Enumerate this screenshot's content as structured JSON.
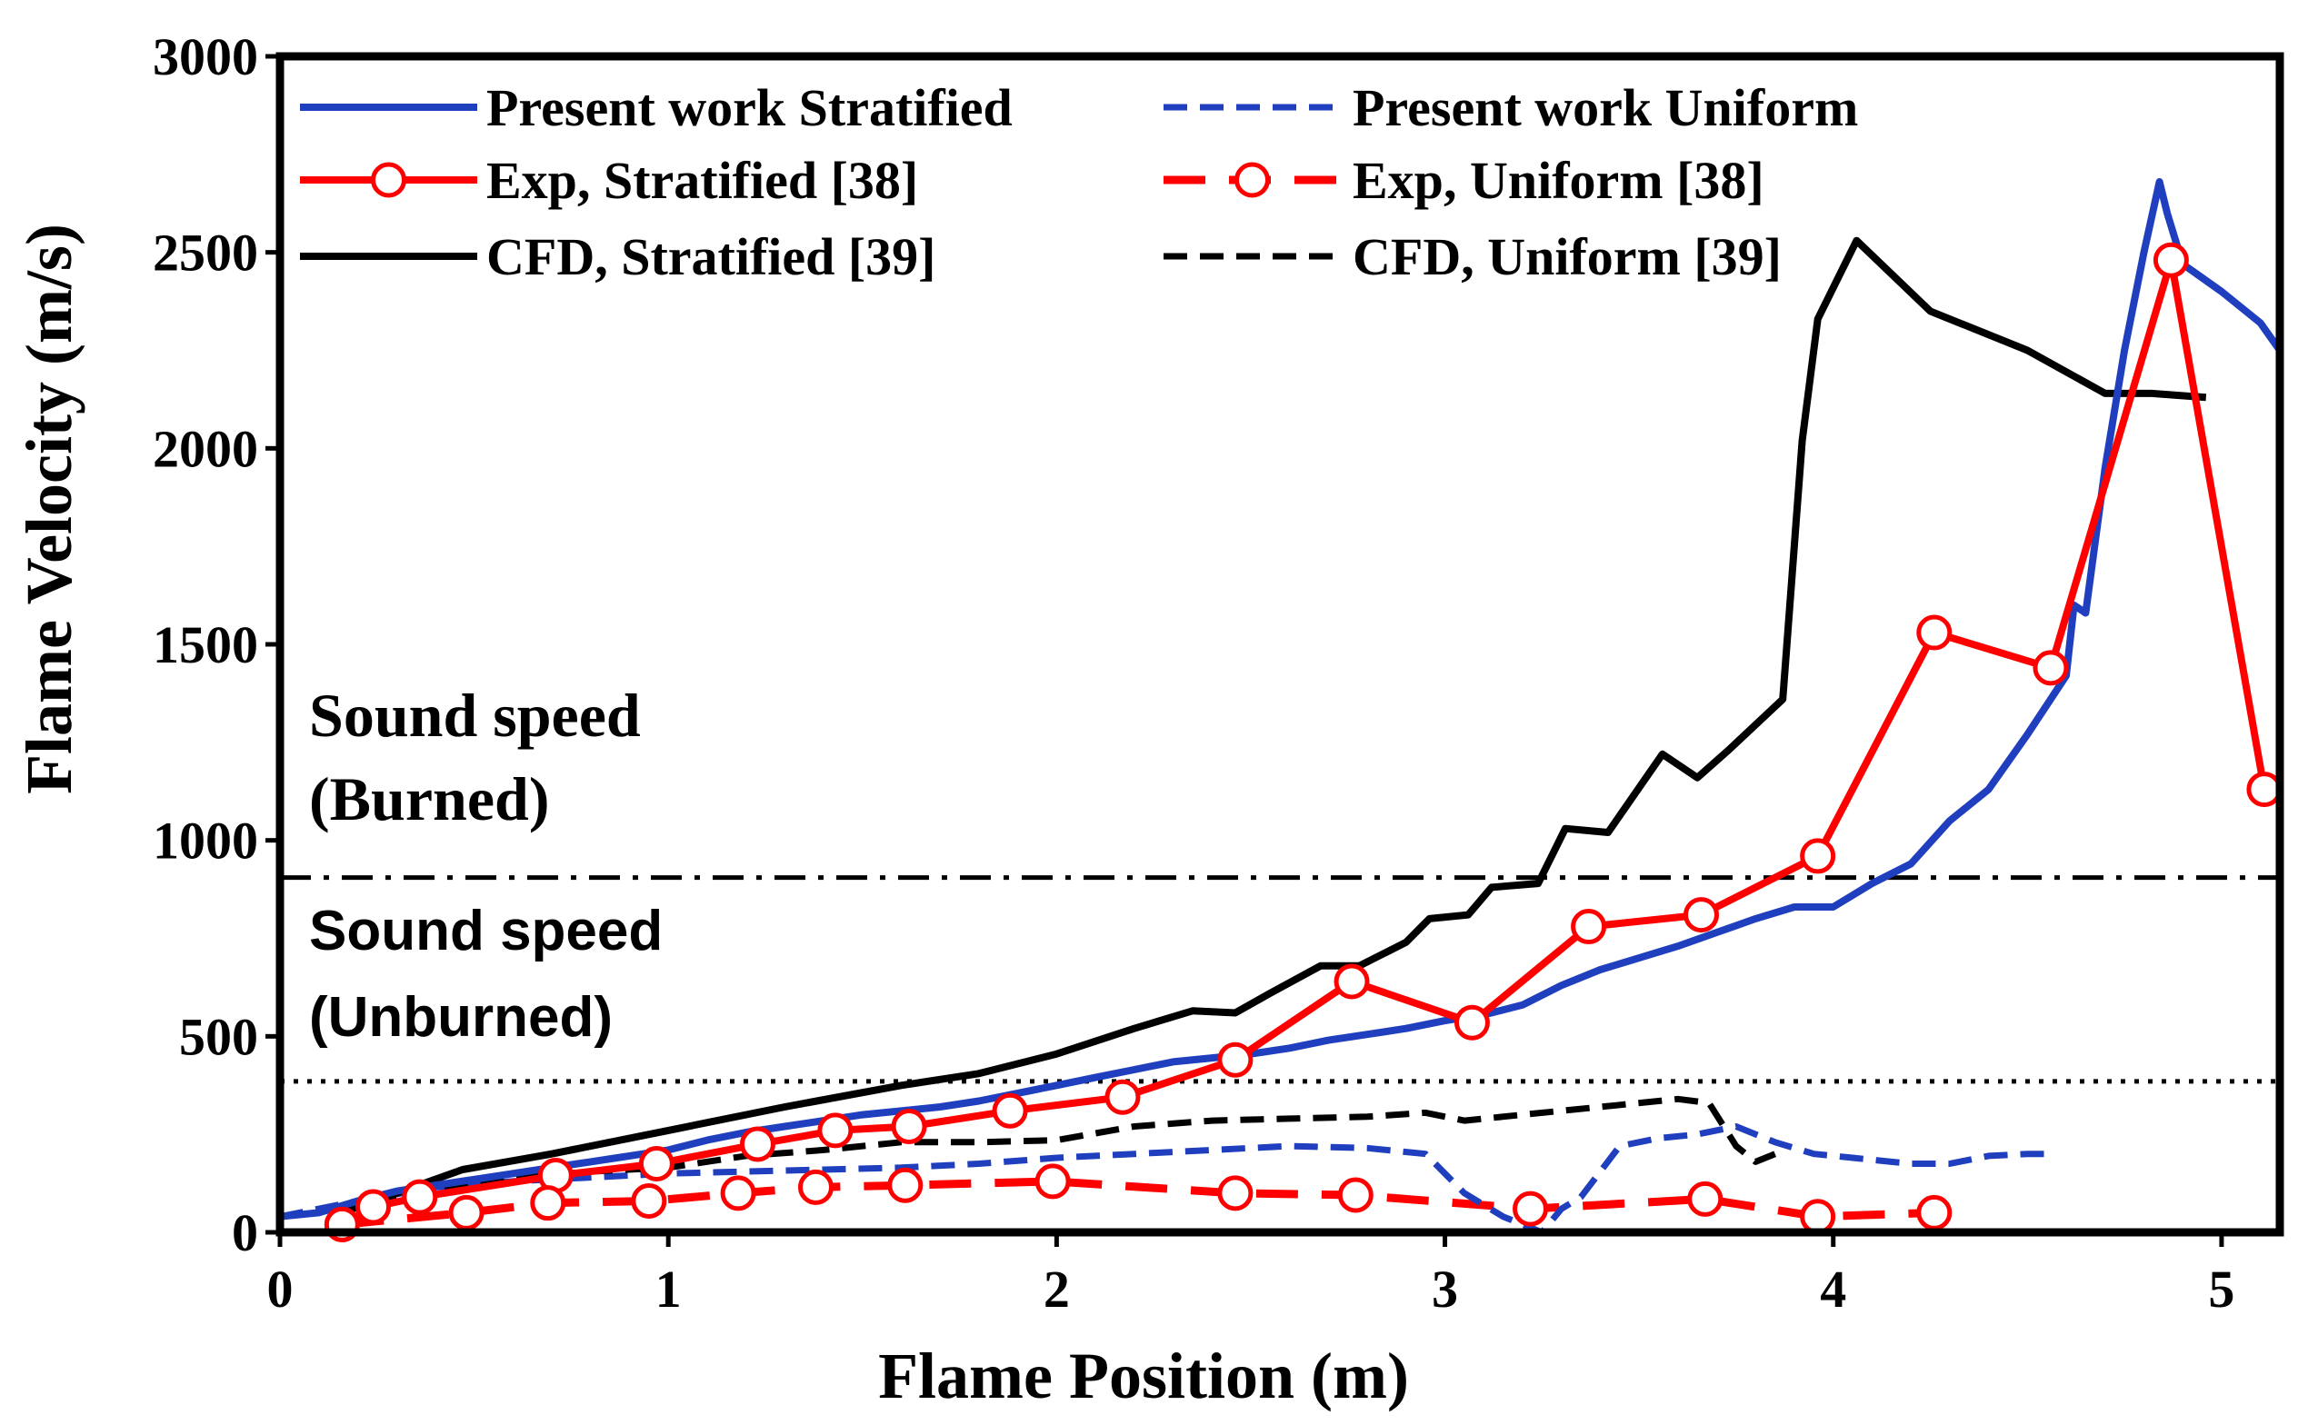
{
  "chart_data": {
    "type": "line",
    "title": "",
    "xlabel": "Flame Position (m)",
    "ylabel": "Flame Velocity (m/s)",
    "xlim": [
      0,
      5.15
    ],
    "ylim": [
      0,
      3000
    ],
    "xticks": [
      0,
      1,
      2,
      3,
      4,
      5
    ],
    "yticks": [
      0,
      500,
      1000,
      1500,
      2000,
      2500,
      3000
    ],
    "x_tick_labels": [
      "0",
      "1",
      "2",
      "3",
      "4",
      "5"
    ],
    "y_tick_labels": [
      "0",
      "500",
      "1000",
      "1500",
      "2000",
      "2500",
      "3000"
    ],
    "legend_position": "top",
    "reference_lines": [
      {
        "name": "sound-speed-burned",
        "y": 905,
        "style": "dash-dot",
        "label_lines": [
          "Sound speed",
          "(Burned)"
        ]
      },
      {
        "name": "sound-speed-unburned",
        "y": 385,
        "style": "dotted",
        "label_lines": [
          "Sound speed",
          "(Unburned)"
        ]
      }
    ],
    "series": [
      {
        "name": "Present work Stratified",
        "color": "#1f3fbf",
        "style": "solid",
        "marker": "none",
        "x": [
          0.0,
          0.1,
          0.2,
          0.3,
          0.4,
          0.5,
          0.6,
          0.7,
          0.8,
          0.9,
          1.0,
          1.1,
          1.2,
          1.3,
          1.4,
          1.5,
          1.6,
          1.7,
          1.8,
          1.9,
          2.0,
          2.1,
          2.2,
          2.3,
          2.4,
          2.5,
          2.6,
          2.7,
          2.8,
          2.9,
          3.0,
          3.1,
          3.2,
          3.3,
          3.4,
          3.5,
          3.6,
          3.7,
          3.8,
          3.9,
          4.0,
          4.1,
          4.2,
          4.3,
          4.4,
          4.5,
          4.6,
          4.62,
          4.65,
          4.7,
          4.75,
          4.8,
          4.84,
          4.86,
          4.9,
          5.0,
          5.1,
          5.15
        ],
        "y": [
          40,
          50,
          80,
          105,
          120,
          135,
          150,
          165,
          180,
          195,
          210,
          235,
          255,
          270,
          285,
          300,
          310,
          320,
          335,
          355,
          375,
          395,
          415,
          435,
          445,
          455,
          470,
          490,
          505,
          520,
          540,
          555,
          580,
          630,
          670,
          700,
          730,
          765,
          800,
          830,
          830,
          890,
          940,
          1050,
          1130,
          1270,
          1420,
          1600,
          1580,
          1950,
          2250,
          2500,
          2680,
          2600,
          2470,
          2400,
          2320,
          2250
        ]
      },
      {
        "name": "Present work Uniform",
        "color": "#1f3fbf",
        "style": "dashed",
        "marker": "none",
        "x": [
          0.0,
          0.2,
          0.4,
          0.6,
          0.8,
          1.0,
          1.2,
          1.4,
          1.6,
          1.8,
          2.0,
          2.2,
          2.4,
          2.6,
          2.8,
          2.95,
          3.05,
          3.15,
          3.25,
          3.3,
          3.35,
          3.45,
          3.55,
          3.65,
          3.75,
          3.85,
          3.95,
          4.05,
          4.2,
          4.3,
          4.4,
          4.5,
          4.57
        ],
        "y": [
          40,
          80,
          115,
          130,
          140,
          150,
          155,
          160,
          165,
          175,
          190,
          200,
          210,
          220,
          215,
          200,
          100,
          40,
          0,
          60,
          90,
          220,
          240,
          250,
          270,
          230,
          200,
          190,
          175,
          175,
          195,
          200,
          200
        ]
      },
      {
        "name": "Exp, Stratified [38]",
        "color": "#ff0000",
        "style": "solid",
        "marker": "open-circle",
        "x": [
          0.16,
          0.24,
          0.36,
          0.71,
          0.97,
          1.23,
          1.43,
          1.62,
          1.88,
          2.17,
          2.46,
          2.76,
          3.07,
          3.37,
          3.66,
          3.96,
          4.26,
          4.56,
          4.87,
          5.11
        ],
        "y": [
          20,
          65,
          90,
          145,
          175,
          225,
          260,
          270,
          310,
          345,
          440,
          640,
          535,
          780,
          810,
          960,
          1530,
          1440,
          2480,
          1130
        ]
      },
      {
        "name": "Exp, Uniform [38]",
        "color": "#ff0000",
        "style": "long-dashed",
        "marker": "open-circle",
        "x": [
          0.16,
          0.48,
          0.69,
          0.95,
          1.18,
          1.38,
          1.61,
          1.99,
          2.46,
          2.77,
          3.22,
          3.67,
          3.96,
          4.26
        ],
        "y": [
          20,
          50,
          75,
          80,
          100,
          115,
          120,
          130,
          100,
          95,
          60,
          85,
          40,
          50
        ]
      },
      {
        "name": "CFD, Stratified [39]",
        "color": "#000000",
        "style": "solid",
        "marker": "none",
        "x": [
          0.15,
          0.3,
          0.47,
          0.7,
          1.0,
          1.3,
          1.6,
          1.8,
          2.0,
          2.2,
          2.35,
          2.46,
          2.55,
          2.68,
          2.78,
          2.9,
          2.96,
          3.06,
          3.12,
          3.24,
          3.31,
          3.42,
          3.56,
          3.65,
          3.73,
          3.87,
          3.92,
          3.96,
          4.06,
          4.25,
          4.5,
          4.7,
          4.82,
          4.96
        ],
        "y": [
          50,
          100,
          160,
          200,
          260,
          320,
          375,
          405,
          455,
          520,
          565,
          560,
          610,
          680,
          680,
          740,
          800,
          810,
          880,
          890,
          1030,
          1020,
          1220,
          1160,
          1230,
          1360,
          2020,
          2330,
          2530,
          2350,
          2250,
          2140,
          2140,
          2130
        ]
      },
      {
        "name": "CFD, Uniform [39]",
        "color": "#000000",
        "style": "dashed",
        "marker": "none",
        "x": [
          0.15,
          0.4,
          0.6,
          0.8,
          1.0,
          1.2,
          1.4,
          1.6,
          1.8,
          2.0,
          2.2,
          2.4,
          2.6,
          2.8,
          2.95,
          3.05,
          3.2,
          3.4,
          3.6,
          3.68,
          3.75,
          3.8,
          3.85
        ],
        "y": [
          50,
          110,
          140,
          155,
          165,
          195,
          210,
          230,
          230,
          235,
          270,
          285,
          290,
          295,
          305,
          285,
          300,
          320,
          340,
          330,
          220,
          180,
          200
        ]
      }
    ]
  }
}
